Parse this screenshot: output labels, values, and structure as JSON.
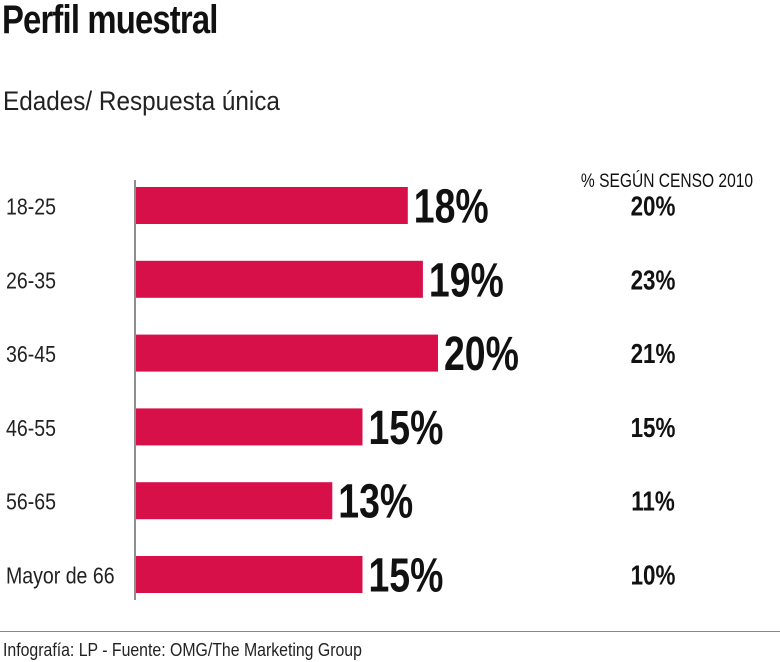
{
  "chart_data": {
    "type": "bar",
    "orientation": "horizontal",
    "title": "Perfil muestral",
    "subtitle": "Edades/ Respuesta única",
    "categories": [
      "18-25",
      "26-35",
      "36-45",
      "46-55",
      "56-65",
      "Mayor de 66"
    ],
    "series": [
      {
        "values": [
          18,
          19,
          20,
          15,
          13,
          15
        ],
        "labels": [
          "18%",
          "19%",
          "20%",
          "15%",
          "13%",
          "15%"
        ],
        "color": "#d7104a"
      }
    ],
    "census_header": "% SEGÚN CENSO 2010",
    "census_values": [
      "20%",
      "23%",
      "21%",
      "15%",
      "11%",
      "10%"
    ],
    "grid": false,
    "xlim": [
      0,
      30
    ]
  },
  "footer": "Infografía: LP - Fuente: OMG/The Marketing Group"
}
